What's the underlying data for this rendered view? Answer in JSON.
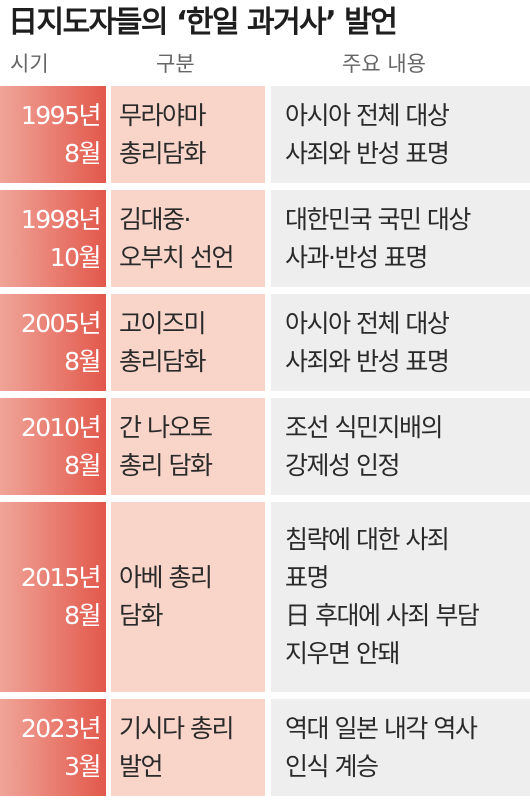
{
  "title": "日지도자들의 ‘한일 과거사’ 발언",
  "headers": {
    "time": "시기",
    "category": "구분",
    "content": "주요 내용"
  },
  "rows": [
    {
      "year": "1995년",
      "month": "8월",
      "category": [
        "무라야마",
        "총리담화"
      ],
      "content": [
        "아시아 전체 대상",
        "사죄와 반성 표명"
      ]
    },
    {
      "year": "1998년",
      "month": "10월",
      "category": [
        "김대중·",
        "오부치 선언"
      ],
      "content": [
        "대한민국 국민 대상",
        "사과·반성 표명"
      ]
    },
    {
      "year": "2005년",
      "month": "8월",
      "category": [
        "고이즈미",
        "총리담화"
      ],
      "content": [
        "아시아 전체 대상",
        "사죄와 반성 표명"
      ]
    },
    {
      "year": "2010년",
      "month": "8월",
      "category": [
        "간 나오토",
        "총리 담화"
      ],
      "content": [
        "조선 식민지배의",
        "강제성 인정"
      ]
    },
    {
      "year": "2015년",
      "month": "8월",
      "category": [
        "아베 총리",
        "담화"
      ],
      "content": [
        "침략에 대한 사죄",
        "표명",
        "日 후대에 사죄 부담",
        "지우면 안돼"
      ]
    },
    {
      "year": "2023년",
      "month": "3월",
      "category": [
        "기시다 총리",
        "발언"
      ],
      "content": [
        "역대 일본 내각 역사",
        "인식 계승"
      ]
    }
  ]
}
